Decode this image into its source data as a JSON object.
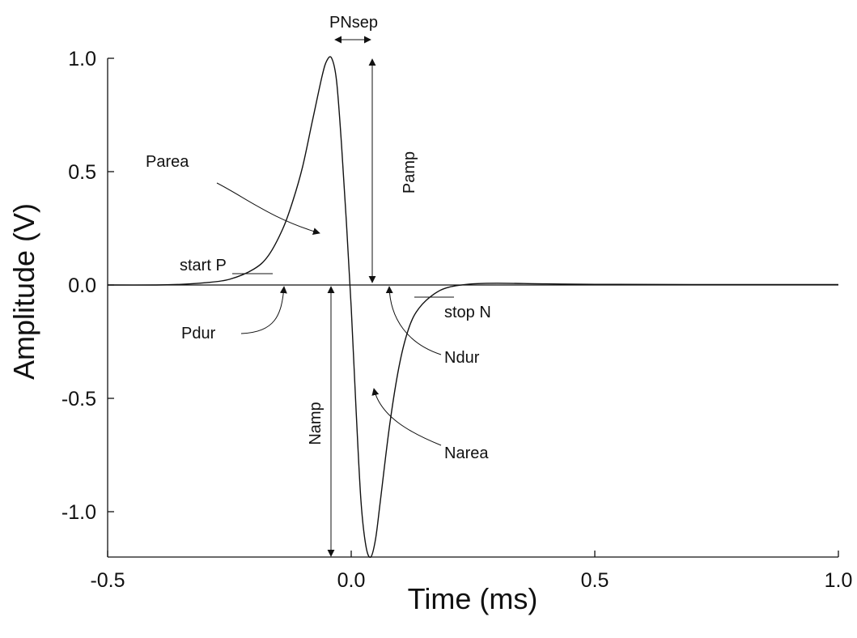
{
  "chart_data": {
    "type": "line",
    "xlabel": "Time (ms)",
    "ylabel": "Amplitude (V)",
    "xlim": [
      -0.5,
      1.0
    ],
    "ylim": [
      -1.2,
      1.0
    ],
    "x_ticks": [
      -0.5,
      0.0,
      0.5,
      1.0
    ],
    "x_tick_labels": [
      "-0.5",
      "0.0",
      "0.5",
      "1.0"
    ],
    "y_ticks": [
      1.0,
      0.5,
      0.0,
      -0.5,
      -1.0
    ],
    "y_tick_labels": [
      "1.0",
      "0.5",
      "0.0",
      "-0.5",
      "-1.0"
    ],
    "grid": false,
    "series": [
      {
        "x": [
          -0.5,
          -0.4,
          -0.35,
          -0.3,
          -0.25,
          -0.2,
          -0.17,
          -0.14,
          -0.12,
          -0.1,
          -0.08,
          -0.06,
          -0.05,
          -0.04,
          -0.03,
          -0.02,
          -0.01,
          0.0,
          0.01,
          0.02,
          0.03,
          0.04,
          0.05,
          0.06,
          0.08,
          0.1,
          0.12,
          0.14,
          0.17,
          0.2,
          0.25,
          0.3,
          0.4,
          0.5,
          0.7,
          1.0
        ],
        "y": [
          0.0,
          0.0,
          0.003,
          0.01,
          0.025,
          0.07,
          0.13,
          0.25,
          0.37,
          0.52,
          0.72,
          0.92,
          0.99,
          1.0,
          0.9,
          0.62,
          0.28,
          -0.1,
          -0.55,
          -0.95,
          -1.15,
          -1.2,
          -1.12,
          -0.95,
          -0.6,
          -0.34,
          -0.18,
          -0.1,
          -0.04,
          -0.01,
          0.005,
          0.008,
          0.005,
          0.003,
          0.002,
          0.002
        ]
      }
    ],
    "annotations": {
      "pnsep": "PNsep",
      "parea": "Parea",
      "pamp": "Pamp",
      "start_p": "start P",
      "pdur": "Pdur",
      "stop_n": "stop N",
      "ndur": "Ndur",
      "namp": "Namp",
      "narea": "Narea"
    }
  }
}
